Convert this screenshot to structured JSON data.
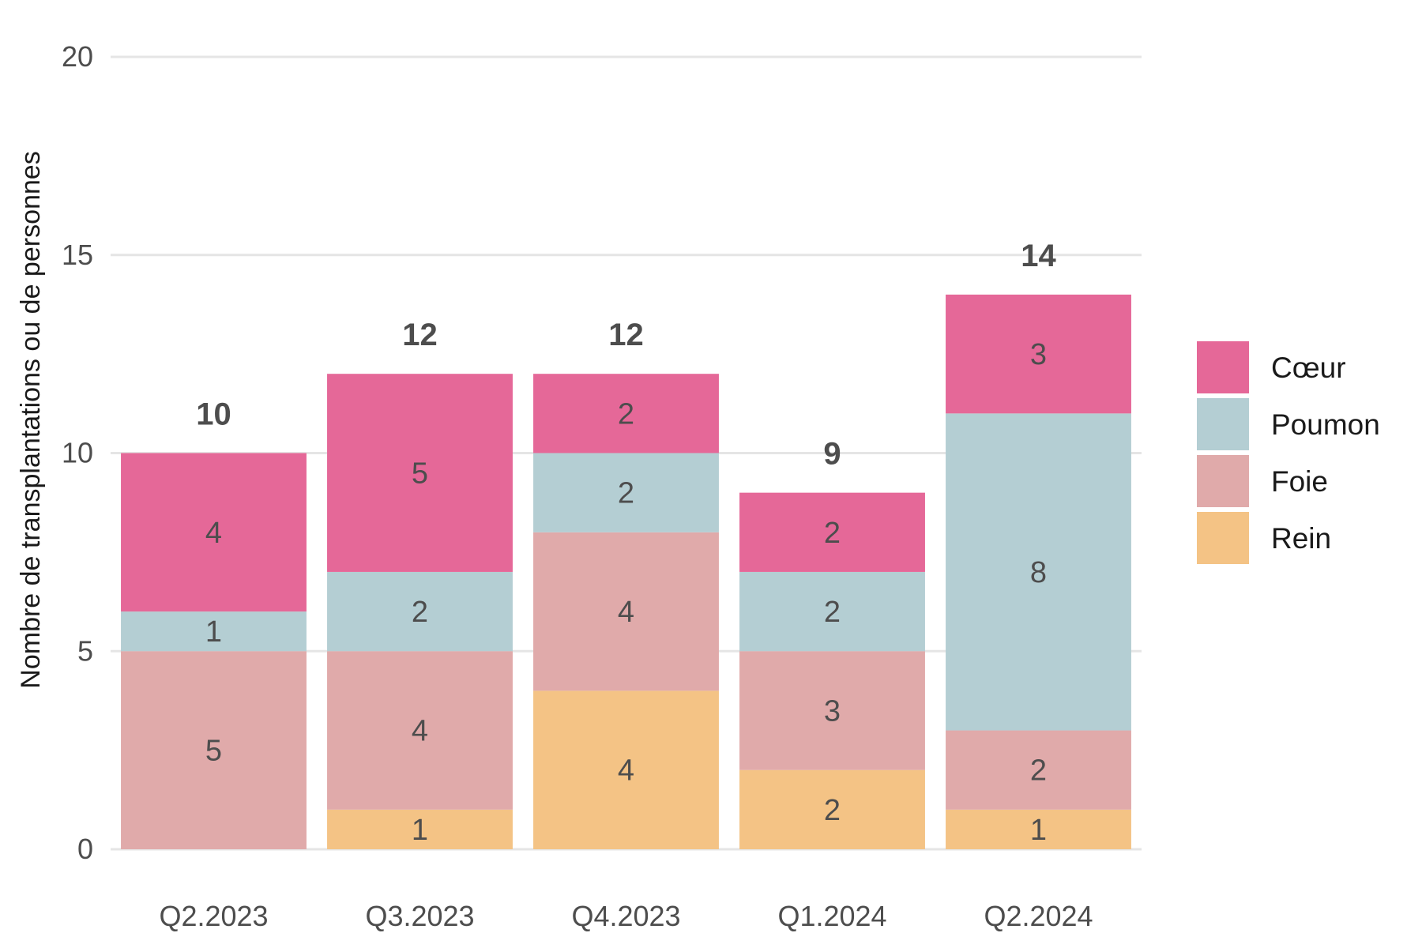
{
  "chart_data": {
    "type": "bar",
    "stacked": true,
    "categories": [
      "Q2.2023",
      "Q3.2023",
      "Q4.2023",
      "Q1.2024",
      "Q2.2024"
    ],
    "series": [
      {
        "name": "Rein",
        "color": "#f4c385",
        "values": [
          0,
          1,
          4,
          2,
          1
        ]
      },
      {
        "name": "Foie",
        "color": "#e0aaaa",
        "values": [
          5,
          4,
          4,
          3,
          2
        ]
      },
      {
        "name": "Poumon",
        "color": "#b4ced3",
        "values": [
          1,
          2,
          2,
          2,
          8
        ]
      },
      {
        "name": "Cœur",
        "color": "#e56898",
        "values": [
          4,
          5,
          2,
          2,
          3
        ]
      }
    ],
    "totals": [
      10,
      12,
      12,
      9,
      14
    ],
    "ylabel": "Nombre de transplantations ou de personnes",
    "xlabel": "",
    "ylim": [
      0,
      20
    ],
    "yticks": [
      0,
      5,
      10,
      15,
      20
    ],
    "grid": true,
    "legend_position": "right",
    "legend_order": [
      "Cœur",
      "Poumon",
      "Foie",
      "Rein"
    ]
  }
}
